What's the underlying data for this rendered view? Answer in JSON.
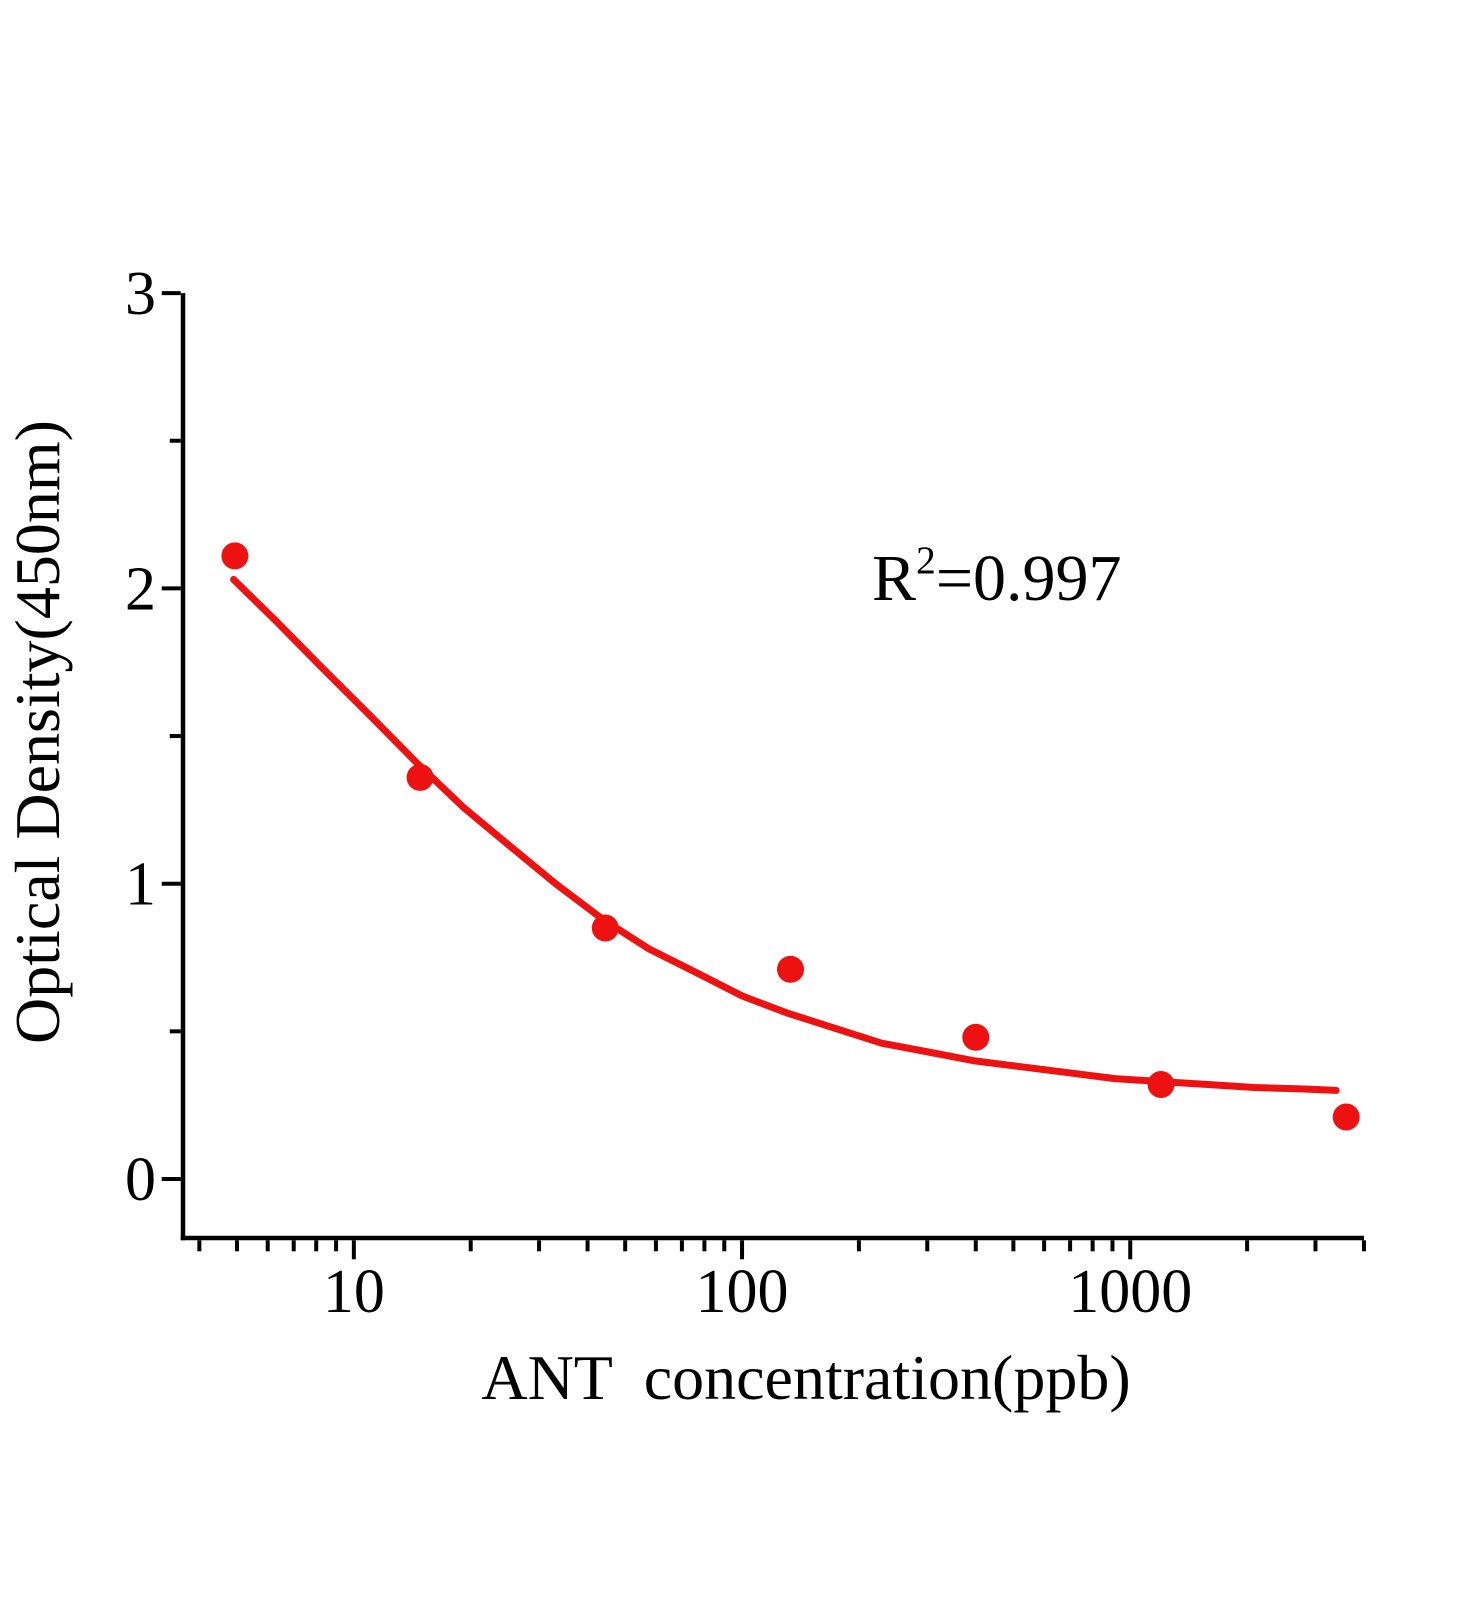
{
  "page": {
    "background_color": "#ffffff",
    "text_color": "#000000"
  },
  "chart_data": {
    "type": "scatter",
    "title": "",
    "xlabel": "ANT  concentration(ppb)",
    "ylabel": "Optical Density(450nm)",
    "x_scale": "log",
    "y_scale": "linear",
    "x_domain": [
      3.63,
      4000
    ],
    "y_domain": [
      -0.2,
      3
    ],
    "grid": false,
    "legend_position": "none",
    "colors": {
      "series": "#ee1111",
      "axis": "#000000"
    },
    "x_major_ticks": [
      {
        "value": 10,
        "label": "10"
      },
      {
        "value": 100,
        "label": "100"
      },
      {
        "value": 1000,
        "label": "1000"
      }
    ],
    "x_minor_ticks": [
      4,
      5,
      6,
      7,
      8,
      9,
      20,
      30,
      40,
      50,
      60,
      70,
      80,
      90,
      200,
      300,
      400,
      500,
      600,
      700,
      800,
      900,
      2000,
      3000,
      4000
    ],
    "y_major_ticks": [
      {
        "value": 0,
        "label": "0"
      },
      {
        "value": 1,
        "label": "1"
      },
      {
        "value": 2,
        "label": "2"
      },
      {
        "value": 3,
        "label": "3"
      }
    ],
    "y_minor_ticks": [
      0.5,
      1.5,
      2.5
    ],
    "annotation": {
      "text": "R²=0.997",
      "base": "R",
      "sup": "2",
      "rest": "=0.997",
      "r_squared": 0.997
    },
    "series": [
      {
        "name": "standard-points",
        "kind": "scatter",
        "marker": "circle",
        "marker_radius": 13.5,
        "color": "#ee1111",
        "points": [
          {
            "x": 4.94,
            "y": 2.11
          },
          {
            "x": 14.81,
            "y": 1.36
          },
          {
            "x": 44.44,
            "y": 0.85
          },
          {
            "x": 133.33,
            "y": 0.71
          },
          {
            "x": 400,
            "y": 0.48
          },
          {
            "x": 1200,
            "y": 0.32
          },
          {
            "x": 3600,
            "y": 0.21
          }
        ]
      },
      {
        "name": "4pl-fit-curve",
        "kind": "line",
        "stroke_width": 7,
        "color": "#ee1111",
        "points": [
          {
            "x": 4.9,
            "y": 2.03
          },
          {
            "x": 6.3,
            "y": 1.89
          },
          {
            "x": 8.3,
            "y": 1.73
          },
          {
            "x": 11.0,
            "y": 1.57
          },
          {
            "x": 14.5,
            "y": 1.41
          },
          {
            "x": 19.1,
            "y": 1.26
          },
          {
            "x": 25.1,
            "y": 1.13
          },
          {
            "x": 33.1,
            "y": 1.0
          },
          {
            "x": 43.7,
            "y": 0.88
          },
          {
            "x": 57.5,
            "y": 0.78
          },
          {
            "x": 75.9,
            "y": 0.7
          },
          {
            "x": 100,
            "y": 0.62
          },
          {
            "x": 132,
            "y": 0.56
          },
          {
            "x": 174,
            "y": 0.51
          },
          {
            "x": 229,
            "y": 0.46
          },
          {
            "x": 302,
            "y": 0.43
          },
          {
            "x": 398,
            "y": 0.4
          },
          {
            "x": 525,
            "y": 0.38
          },
          {
            "x": 692,
            "y": 0.36
          },
          {
            "x": 912,
            "y": 0.34
          },
          {
            "x": 1202,
            "y": 0.33
          },
          {
            "x": 1585,
            "y": 0.32
          },
          {
            "x": 2089,
            "y": 0.31
          },
          {
            "x": 2754,
            "y": 0.305
          },
          {
            "x": 3390,
            "y": 0.3
          }
        ]
      }
    ]
  }
}
